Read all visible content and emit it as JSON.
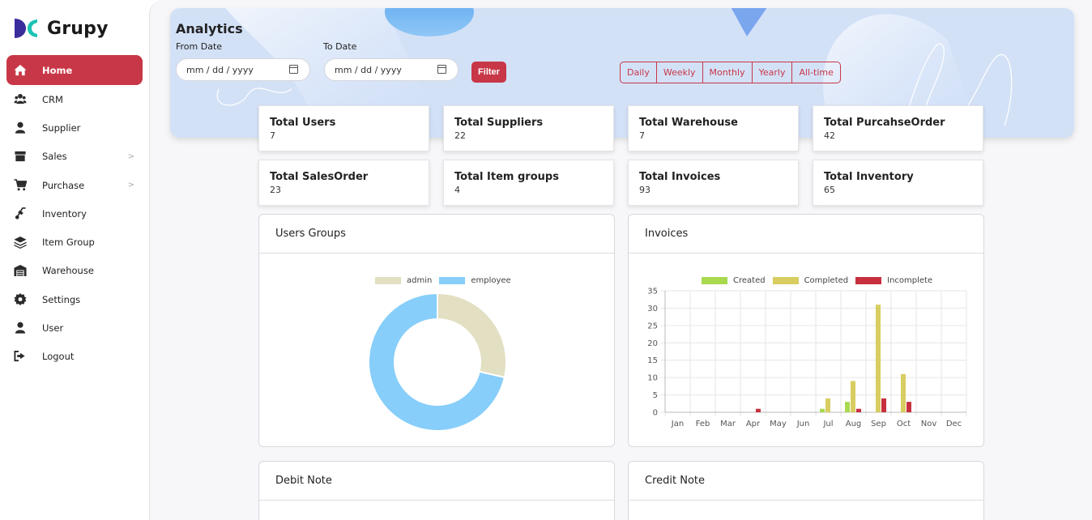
{
  "app": {
    "name": "Grupy"
  },
  "sidebar": {
    "items": [
      {
        "label": "Home",
        "icon": "home-icon",
        "active": true,
        "chevron": false
      },
      {
        "label": "CRM",
        "icon": "users-icon",
        "active": false,
        "chevron": false
      },
      {
        "label": "Supplier",
        "icon": "user-icon",
        "active": false,
        "chevron": false
      },
      {
        "label": "Sales",
        "icon": "box-icon",
        "active": false,
        "chevron": true
      },
      {
        "label": "Purchase",
        "icon": "cart-icon",
        "active": false,
        "chevron": true
      },
      {
        "label": "Inventory",
        "icon": "dolly-icon",
        "active": false,
        "chevron": false
      },
      {
        "label": "Item Group",
        "icon": "layers-icon",
        "active": false,
        "chevron": false
      },
      {
        "label": "Warehouse",
        "icon": "warehouse-icon",
        "active": false,
        "chevron": false
      },
      {
        "label": "Settings",
        "icon": "gear-icon",
        "active": false,
        "chevron": false
      },
      {
        "label": "User",
        "icon": "user-icon",
        "active": false,
        "chevron": false
      },
      {
        "label": "Logout",
        "icon": "logout-icon",
        "active": false,
        "chevron": false
      }
    ],
    "chevron_glyph": ">"
  },
  "analytics": {
    "title": "Analytics",
    "from_label": "From Date",
    "to_label": "To Date",
    "date_placeholder": "mm / dd / yyyy",
    "filter_label": "Filter",
    "ranges": [
      "Daily",
      "Weekly",
      "Monthly",
      "Yearly",
      "All-time"
    ]
  },
  "stats": [
    {
      "title": "Total Users",
      "value": "7"
    },
    {
      "title": "Total Suppliers",
      "value": "22"
    },
    {
      "title": "Total Warehouse",
      "value": "7"
    },
    {
      "title": "Total PurcahseOrder",
      "value": "42"
    },
    {
      "title": "Total SalesOrder",
      "value": "23"
    },
    {
      "title": "Total Item groups",
      "value": "4"
    },
    {
      "title": "Total Invoices",
      "value": "93"
    },
    {
      "title": "Total Inventory",
      "value": "65"
    }
  ],
  "panels": {
    "users_groups": "Users Groups",
    "invoices": "Invoices",
    "debit_note": "Debit Note",
    "credit_note": "Credit Note"
  },
  "colors": {
    "accent": "#c83747",
    "admin": "#e3dfc3",
    "employee": "#87cefa",
    "created": "#a8d94f",
    "completed": "#d8cd60",
    "incomplete": "#c8303f"
  },
  "chart_data": [
    {
      "type": "pie",
      "labels": [
        "admin",
        "employee"
      ],
      "values": [
        2,
        5
      ],
      "donut": true,
      "legend": "top"
    },
    {
      "type": "bar",
      "categories": [
        "Jan",
        "Feb",
        "Mar",
        "Apr",
        "May",
        "Jun",
        "Jul",
        "Aug",
        "Sep",
        "Oct",
        "Nov",
        "Dec"
      ],
      "series": [
        {
          "name": "Created",
          "values": [
            0,
            0,
            0,
            0,
            0,
            0,
            1,
            3,
            0,
            0,
            0,
            0
          ]
        },
        {
          "name": "Completed",
          "values": [
            0,
            0,
            0,
            0,
            0,
            0,
            4,
            9,
            31,
            11,
            0,
            0
          ]
        },
        {
          "name": "Incomplete",
          "values": [
            0,
            0,
            0,
            1,
            0,
            0,
            0,
            1,
            4,
            3,
            0,
            0
          ]
        }
      ],
      "ylim": [
        0,
        35
      ],
      "yticks": [
        0,
        5,
        10,
        15,
        20,
        25,
        30,
        35
      ],
      "grid": true,
      "legend": "top"
    }
  ]
}
